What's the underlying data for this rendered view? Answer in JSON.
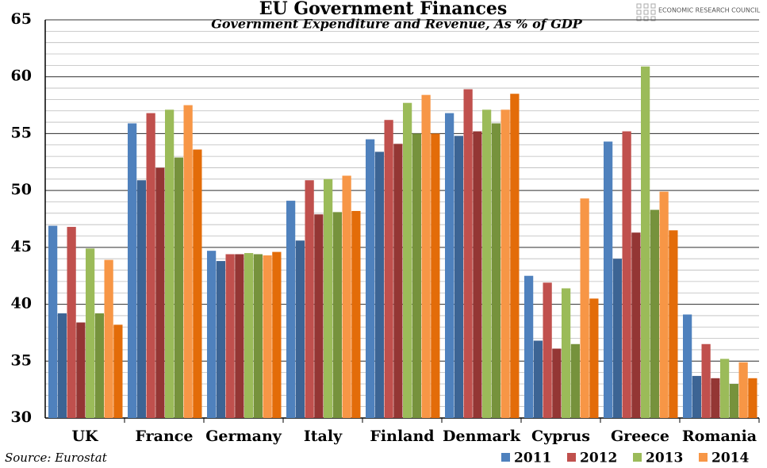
{
  "chart_data": {
    "type": "bar",
    "title": "EU Government Finances",
    "subtitle": "Government Expenditure and Revenue, As % of GDP",
    "source": "Source: Eurostat",
    "logo": "ECONOMIC RESEARCH COUNCIL",
    "categories": [
      "UK",
      "France",
      "Germany",
      "Italy",
      "Finland",
      "Denmark",
      "Cyprus",
      "Greece",
      "Romania"
    ],
    "series": [
      {
        "name": "2011",
        "color": "#4f81bd",
        "revenue_color": "#3c6494",
        "values": [
          46.9,
          55.9,
          44.7,
          49.1,
          54.5,
          56.8,
          42.5,
          54.3,
          39.1
        ],
        "revenue": [
          39.2,
          50.9,
          43.8,
          45.6,
          53.4,
          54.8,
          36.8,
          44.0,
          33.7
        ]
      },
      {
        "name": "2012",
        "color": "#c0504d",
        "revenue_color": "#943634",
        "values": [
          46.8,
          56.8,
          44.4,
          50.9,
          56.2,
          58.9,
          41.9,
          55.2,
          36.5
        ],
        "revenue": [
          38.4,
          52.0,
          44.4,
          47.9,
          54.1,
          55.2,
          36.1,
          46.3,
          33.5
        ]
      },
      {
        "name": "2013",
        "color": "#9bbb59",
        "revenue_color": "#76923c",
        "values": [
          44.9,
          57.1,
          44.5,
          51.0,
          57.7,
          57.1,
          41.4,
          60.9,
          35.2
        ],
        "revenue": [
          39.2,
          52.9,
          44.4,
          48.1,
          55.0,
          55.9,
          36.5,
          48.3,
          33.0
        ]
      },
      {
        "name": "2014",
        "color": "#f79646",
        "revenue_color": "#e36c09",
        "values": [
          43.9,
          57.5,
          44.3,
          51.3,
          58.4,
          57.1,
          49.3,
          49.9,
          34.9
        ],
        "revenue": [
          38.2,
          53.6,
          44.6,
          48.2,
          55.0,
          58.5,
          40.5,
          46.5,
          33.5
        ]
      }
    ],
    "ylim": [
      30,
      65
    ],
    "yticks": [
      30,
      35,
      40,
      45,
      50,
      55,
      60,
      65
    ],
    "grid": true,
    "minor_grid": 1,
    "legend": "bottom-right"
  }
}
